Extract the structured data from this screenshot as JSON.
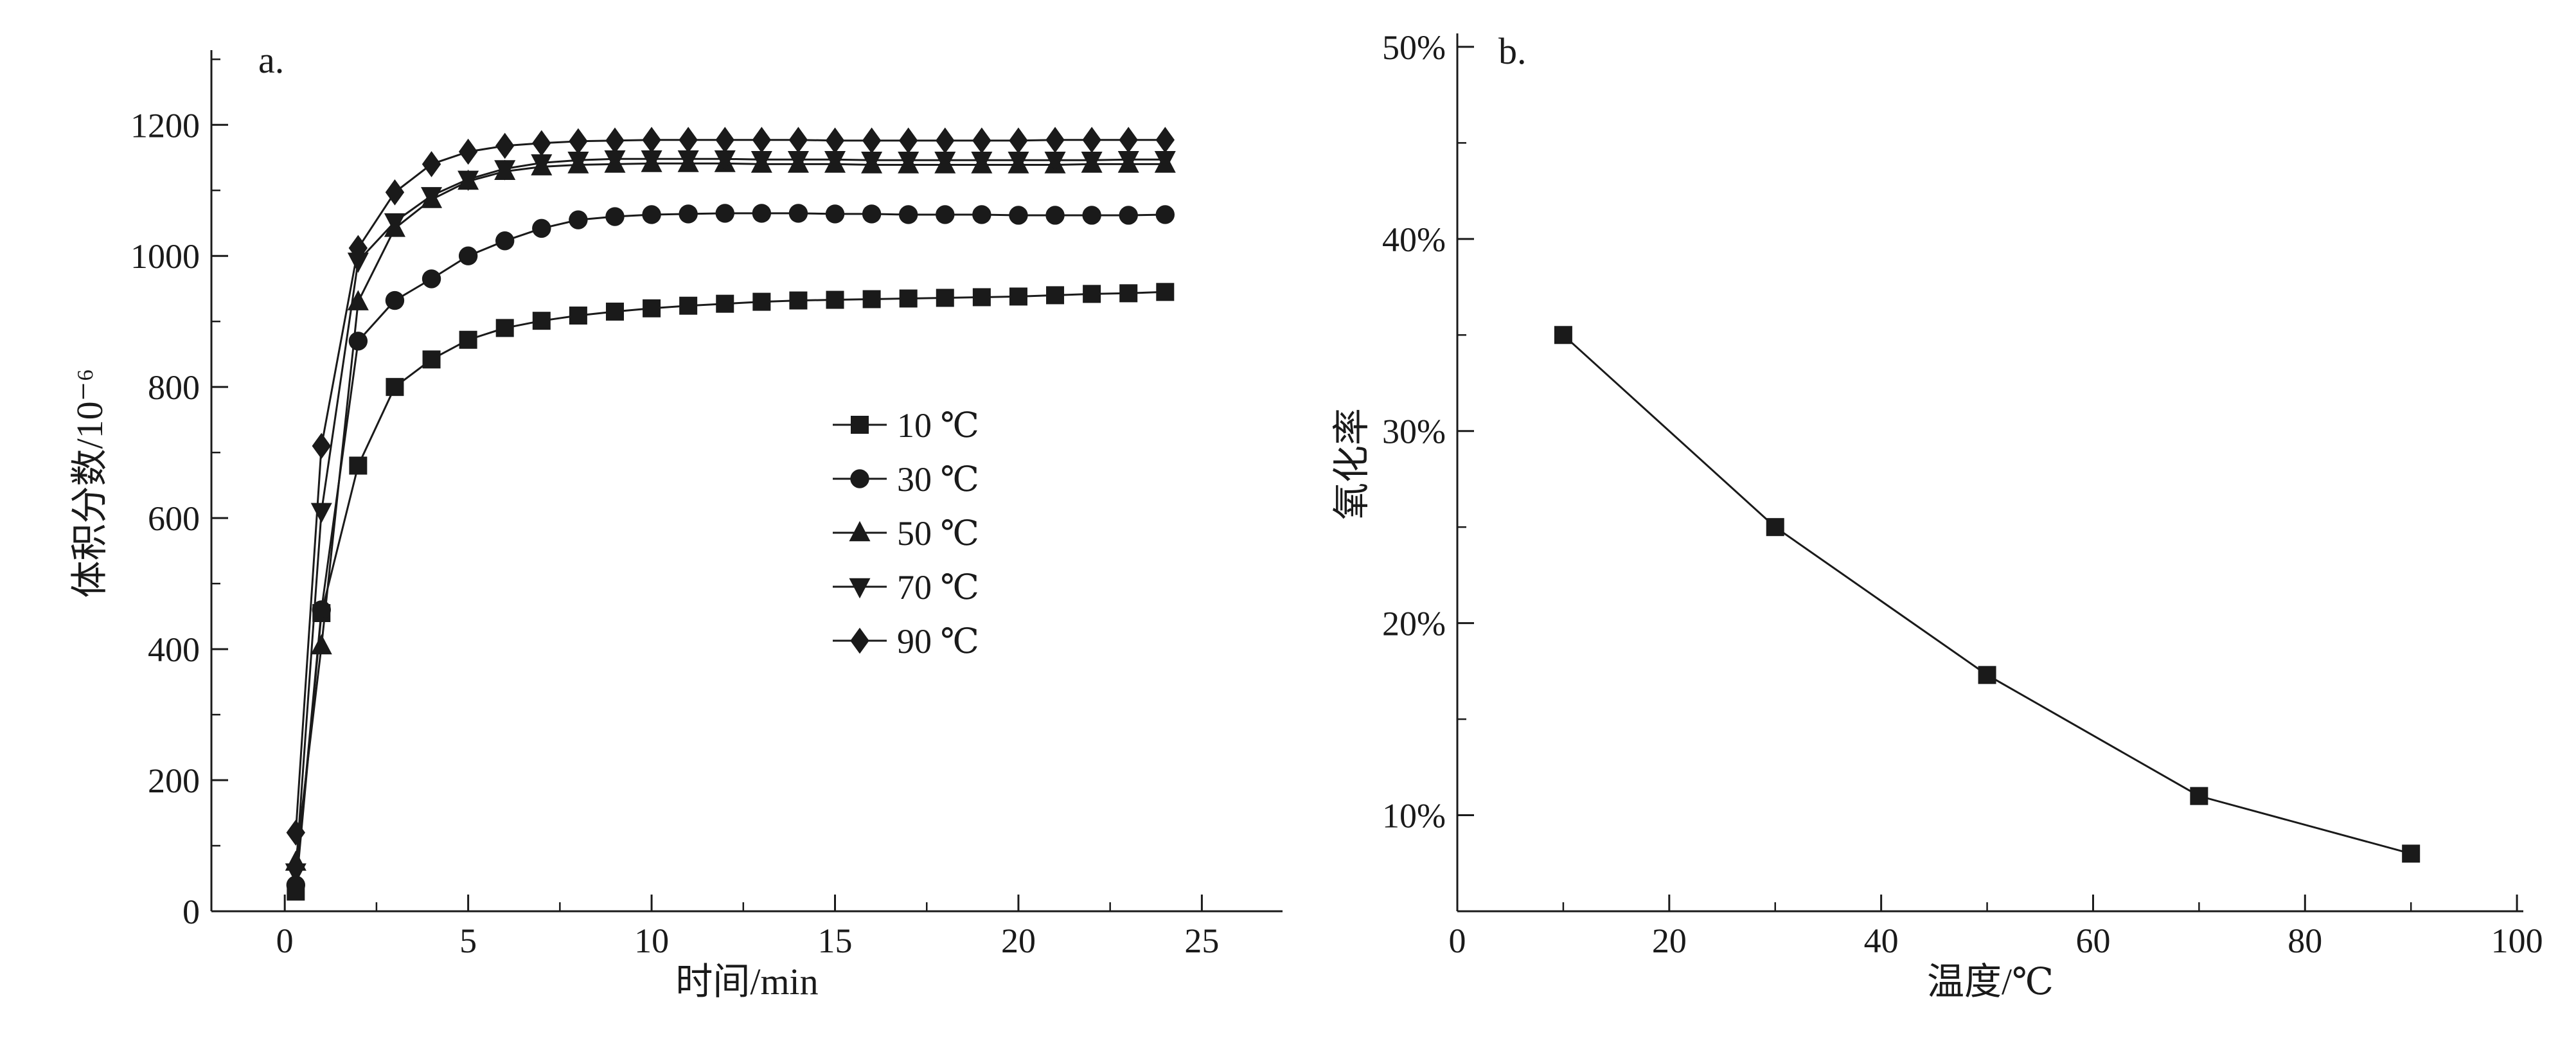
{
  "figure": {
    "background_color": "#ffffff",
    "ink_color": "#1a1a1a"
  },
  "chart_data": [
    {
      "id": "a",
      "type": "line",
      "panel_label": "a.",
      "xlabel": "时间/min",
      "ylabel": "体积分数/10⁻⁶",
      "xlim": [
        -2,
        27.2
      ],
      "ylim": [
        0,
        1314
      ],
      "xticks": [
        0,
        5,
        10,
        15,
        20,
        25
      ],
      "yticks": [
        0,
        200,
        400,
        600,
        800,
        1000,
        1200
      ],
      "x_minor_step": 2.5,
      "y_minor_step": 100,
      "grid": false,
      "legend_visible": true,
      "legend_position": "center-right",
      "x": [
        0.3,
        1,
        2,
        3,
        4,
        5,
        6,
        7,
        8,
        9,
        10,
        11,
        12,
        13,
        14,
        15,
        16,
        17,
        18,
        19,
        20,
        21,
        22,
        23,
        24
      ],
      "series": [
        {
          "name": "10 ℃",
          "marker": "square",
          "values": [
            30,
            455,
            680,
            800,
            842,
            872,
            890,
            901,
            909,
            915,
            920,
            924,
            927,
            930,
            932,
            933,
            934,
            935,
            936,
            937,
            938,
            940,
            942,
            943,
            945
          ]
        },
        {
          "name": "30 ℃",
          "marker": "circle",
          "values": [
            40,
            460,
            870,
            932,
            965,
            1000,
            1023,
            1042,
            1055,
            1060,
            1063,
            1064,
            1065,
            1065,
            1065,
            1064,
            1064,
            1063,
            1063,
            1063,
            1062,
            1062,
            1062,
            1062,
            1063
          ]
        },
        {
          "name": "50 ℃",
          "marker": "triangle-up",
          "values": [
            75,
            405,
            930,
            1042,
            1086,
            1114,
            1129,
            1136,
            1139,
            1140,
            1141,
            1141,
            1141,
            1140,
            1140,
            1140,
            1139,
            1139,
            1139,
            1139,
            1139,
            1139,
            1140,
            1140,
            1140
          ]
        },
        {
          "name": "70 ℃",
          "marker": "triangle-down",
          "values": [
            60,
            610,
            992,
            1052,
            1092,
            1117,
            1133,
            1142,
            1146,
            1148,
            1148,
            1148,
            1148,
            1147,
            1147,
            1147,
            1146,
            1146,
            1146,
            1146,
            1146,
            1146,
            1146,
            1147,
            1147
          ]
        },
        {
          "name": "90 ℃",
          "marker": "diamond",
          "values": [
            120,
            710,
            1012,
            1097,
            1140,
            1159,
            1168,
            1172,
            1175,
            1176,
            1177,
            1177,
            1177,
            1177,
            1177,
            1176,
            1176,
            1176,
            1176,
            1176,
            1176,
            1177,
            1177,
            1177,
            1177
          ]
        }
      ]
    },
    {
      "id": "b",
      "type": "line",
      "panel_label": "b.",
      "xlabel": "温度/℃",
      "ylabel": "氧化率",
      "xlim": [
        0,
        100.6
      ],
      "ylim": [
        5,
        50.7
      ],
      "xticks": [
        0,
        20,
        40,
        60,
        80,
        100
      ],
      "yticks": [
        10,
        20,
        30,
        40,
        50
      ],
      "ytick_format": "percent",
      "x_minor_step": 10,
      "y_minor_step": 5,
      "grid": false,
      "legend_visible": false,
      "series": [
        {
          "name": "氧化率",
          "marker": "square",
          "x": [
            10,
            30,
            50,
            70,
            90
          ],
          "values": [
            35,
            25,
            17.3,
            11,
            8
          ]
        }
      ]
    }
  ]
}
